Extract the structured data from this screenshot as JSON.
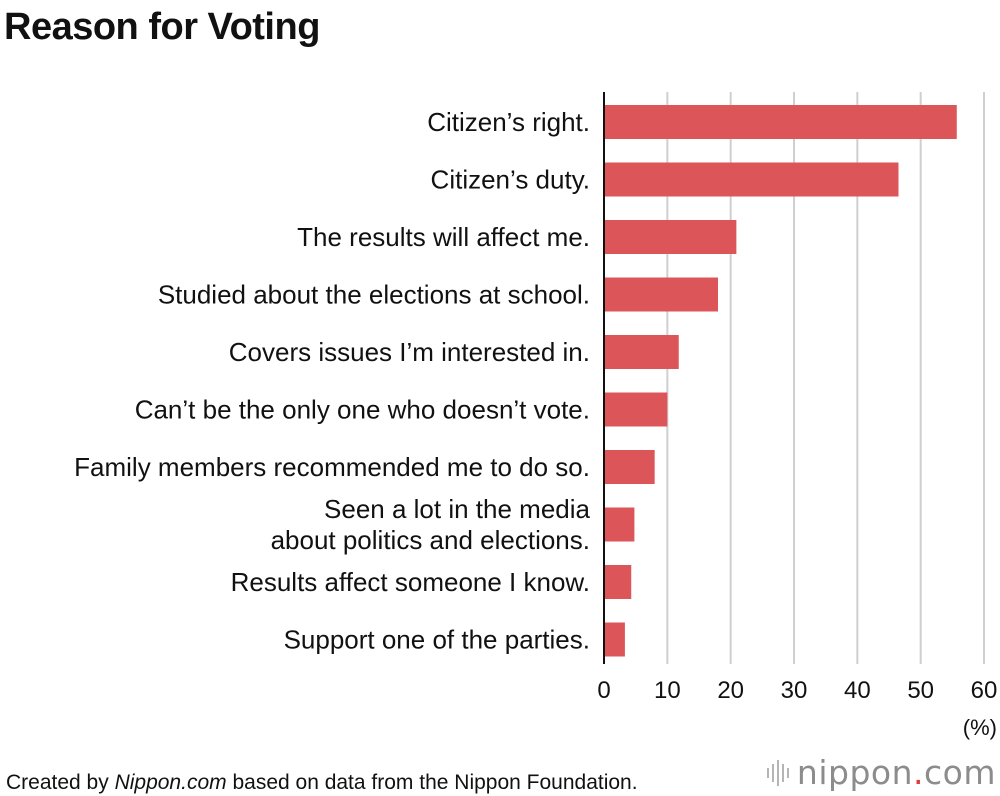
{
  "title": "Reason for Voting",
  "chart_data": {
    "type": "bar",
    "orientation": "horizontal",
    "title": "Reason for Voting",
    "categories": [
      "Citizen’s right.",
      "Citizen’s duty.",
      "The results will affect me.",
      "Studied about the elections at school.",
      "Covers issues I’m interested in.",
      "Can’t be the only one who doesn’t vote.",
      "Family members recommended me to do so.",
      "Seen a lot in the media about politics and elections.",
      "Results affect someone I know.",
      "Support one of the parties."
    ],
    "category_lines": [
      [
        "Citizen’s right."
      ],
      [
        "Citizen’s duty."
      ],
      [
        "The results will affect me."
      ],
      [
        "Studied about the elections at school."
      ],
      [
        "Covers issues I’m interested in."
      ],
      [
        "Can’t be the only one who doesn’t vote."
      ],
      [
        "Family members recommended me to do so."
      ],
      [
        "Seen a lot in the media",
        "about politics and elections."
      ],
      [
        "Results affect someone I know."
      ],
      [
        "Support one of the parties."
      ]
    ],
    "values": [
      55.7,
      46.5,
      20.9,
      18.0,
      11.8,
      10.0,
      8.0,
      4.8,
      4.3,
      3.3
    ],
    "xlim": [
      0,
      60
    ],
    "xticks": [
      0,
      10,
      20,
      30,
      40,
      50,
      60
    ],
    "xlabel": "(%)",
    "ylabel": "",
    "grid": true,
    "bar_color": "#dc5558"
  },
  "footer": {
    "prefix": "Created by ",
    "brand": "Nippon.com",
    "suffix": " based on data from the Nippon Foundation."
  },
  "logo": {
    "name": "nippon",
    "dot": ".",
    "tld": "com"
  }
}
